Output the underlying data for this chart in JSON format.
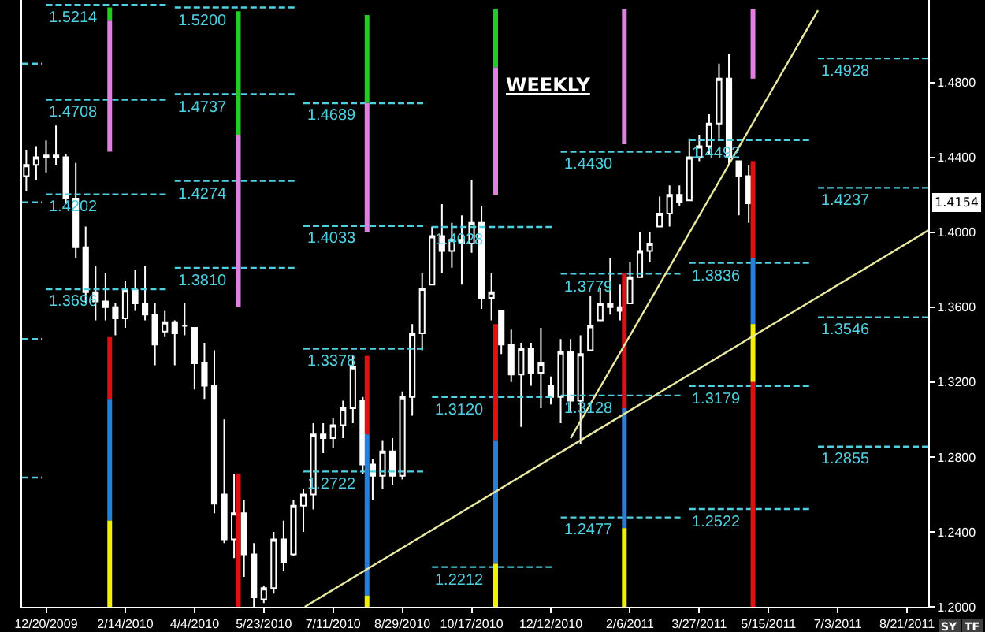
{
  "chart_data": {
    "type": "candlestick",
    "color": "#ffffff",
    "annotations": [
      "WEEKLY",
      "1.4154",
      "SY",
      "TF"
    ],
    "x": [
      "2009-12-06",
      "2009-12-13",
      "2009-12-20",
      "2009-12-27",
      "2010-01-03",
      "2010-01-10",
      "2010-01-17",
      "2010-01-24",
      "2010-01-31",
      "2010-02-07",
      "2010-02-14",
      "2010-02-21",
      "2010-02-28",
      "2010-03-07",
      "2010-03-14",
      "2010-03-21",
      "2010-03-28",
      "2010-04-04",
      "2010-04-11",
      "2010-04-18",
      "2010-04-25",
      "2010-05-02",
      "2010-05-09",
      "2010-05-16",
      "2010-05-23",
      "2010-05-30",
      "2010-06-06",
      "2010-06-13",
      "2010-06-20",
      "2010-06-27",
      "2010-07-04",
      "2010-07-11",
      "2010-07-18",
      "2010-07-25",
      "2010-08-01",
      "2010-08-08",
      "2010-08-15",
      "2010-08-22",
      "2010-08-29",
      "2010-09-05",
      "2010-09-12",
      "2010-09-19",
      "2010-09-26",
      "2010-10-03",
      "2010-10-10",
      "2010-10-17",
      "2010-10-24",
      "2010-10-31",
      "2010-11-07",
      "2010-11-14",
      "2010-11-21",
      "2010-11-28",
      "2010-12-05",
      "2010-12-12",
      "2010-12-19",
      "2010-12-26",
      "2011-01-02",
      "2011-01-09",
      "2011-01-16",
      "2011-01-23",
      "2011-01-30",
      "2011-02-06",
      "2011-02-13",
      "2011-02-20",
      "2011-02-27",
      "2011-03-06",
      "2011-03-13",
      "2011-03-20",
      "2011-03-27",
      "2011-04-03",
      "2011-04-10",
      "2011-04-17",
      "2011-04-24",
      "2011-05-01"
    ],
    "ohlc": [
      [
        1.43,
        1.444,
        1.422,
        1.436
      ],
      [
        1.436,
        1.446,
        1.428,
        1.44
      ],
      [
        1.44,
        1.449,
        1.432,
        1.441
      ],
      [
        1.441,
        1.457,
        1.436,
        1.44
      ],
      [
        1.44,
        1.442,
        1.415,
        1.418
      ],
      [
        1.418,
        1.437,
        1.386,
        1.392
      ],
      [
        1.392,
        1.403,
        1.362,
        1.368
      ],
      [
        1.368,
        1.382,
        1.353,
        1.363
      ],
      [
        1.363,
        1.378,
        1.353,
        1.36
      ],
      [
        1.36,
        1.362,
        1.345,
        1.354
      ],
      [
        1.354,
        1.374,
        1.349,
        1.369
      ],
      [
        1.369,
        1.38,
        1.358,
        1.362
      ],
      [
        1.362,
        1.382,
        1.353,
        1.356
      ],
      [
        1.356,
        1.362,
        1.329,
        1.34
      ],
      [
        1.347,
        1.358,
        1.344,
        1.352
      ],
      [
        1.352,
        1.353,
        1.329,
        1.346
      ],
      [
        1.35,
        1.362,
        1.345,
        1.35
      ],
      [
        1.349,
        1.349,
        1.316,
        1.33
      ],
      [
        1.33,
        1.341,
        1.311,
        1.318
      ],
      [
        1.318,
        1.337,
        1.25,
        1.255
      ],
      [
        1.26,
        1.3,
        1.234,
        1.236
      ],
      [
        1.236,
        1.271,
        1.226,
        1.25
      ],
      [
        1.25,
        1.257,
        1.216,
        1.228
      ],
      [
        1.228,
        1.234,
        1.2,
        1.205
      ],
      [
        1.204,
        1.211,
        1.202,
        1.21
      ],
      [
        1.21,
        1.24,
        1.207,
        1.236
      ],
      [
        1.236,
        1.246,
        1.219,
        1.224
      ],
      [
        1.228,
        1.257,
        1.227,
        1.254
      ],
      [
        1.254,
        1.263,
        1.24,
        1.26
      ],
      [
        1.26,
        1.298,
        1.252,
        1.292
      ],
      [
        1.292,
        1.298,
        1.282,
        1.29
      ],
      [
        1.29,
        1.301,
        1.285,
        1.297
      ],
      [
        1.297,
        1.31,
        1.29,
        1.306
      ],
      [
        1.306,
        1.334,
        1.298,
        1.328
      ],
      [
        1.31,
        1.312,
        1.271,
        1.276
      ],
      [
        1.276,
        1.279,
        1.257,
        1.27
      ],
      [
        1.27,
        1.289,
        1.263,
        1.283
      ],
      [
        1.283,
        1.29,
        1.265,
        1.27
      ],
      [
        1.27,
        1.315,
        1.268,
        1.312
      ],
      [
        1.312,
        1.351,
        1.302,
        1.346
      ],
      [
        1.346,
        1.378,
        1.337,
        1.37
      ],
      [
        1.372,
        1.403,
        1.372,
        1.398
      ],
      [
        1.398,
        1.415,
        1.378,
        1.39
      ],
      [
        1.39,
        1.405,
        1.381,
        1.396
      ],
      [
        1.396,
        1.409,
        1.372,
        1.394
      ],
      [
        1.394,
        1.428,
        1.389,
        1.405
      ],
      [
        1.405,
        1.414,
        1.359,
        1.365
      ],
      [
        1.365,
        1.378,
        1.353,
        1.368
      ],
      [
        1.358,
        1.358,
        1.335,
        1.34
      ],
      [
        1.34,
        1.348,
        1.32,
        1.324
      ],
      [
        1.324,
        1.341,
        1.296,
        1.338
      ],
      [
        1.338,
        1.341,
        1.318,
        1.325
      ],
      [
        1.325,
        1.349,
        1.306,
        1.33
      ],
      [
        1.318,
        1.323,
        1.308,
        1.312
      ],
      [
        1.312,
        1.343,
        1.298,
        1.336
      ],
      [
        1.336,
        1.343,
        1.304,
        1.31
      ],
      [
        1.31,
        1.345,
        1.287,
        1.335
      ],
      [
        1.337,
        1.366,
        1.337,
        1.35
      ],
      [
        1.353,
        1.37,
        1.353,
        1.362
      ],
      [
        1.362,
        1.386,
        1.356,
        1.36
      ],
      [
        1.36,
        1.372,
        1.353,
        1.358
      ],
      [
        1.362,
        1.384,
        1.362,
        1.376
      ],
      [
        1.376,
        1.4,
        1.376,
        1.39
      ],
      [
        1.39,
        1.4,
        1.384,
        1.394
      ],
      [
        1.403,
        1.419,
        1.403,
        1.41
      ],
      [
        1.41,
        1.425,
        1.403,
        1.42
      ],
      [
        1.42,
        1.425,
        1.414,
        1.416
      ],
      [
        1.417,
        1.45,
        1.417,
        1.44
      ],
      [
        1.44,
        1.452,
        1.438,
        1.446
      ],
      [
        1.446,
        1.463,
        1.442,
        1.458
      ],
      [
        1.458,
        1.49,
        1.45,
        1.482
      ],
      [
        1.482,
        1.495,
        1.436,
        1.44
      ],
      [
        1.438,
        1.438,
        1.409,
        1.43
      ],
      [
        1.43,
        1.436,
        1.405,
        1.4154
      ]
    ],
    "series": [
      {
        "type": "line",
        "x": [
          "2009-12-03",
          "2009-12-17"
        ],
        "values": [
          1.49,
          1.49
        ],
        "color": "#4fd0e0",
        "line_style": "dashed"
      },
      {
        "type": "line",
        "x": [
          "2009-12-03",
          "2009-12-17"
        ],
        "values": [
          1.416,
          1.416
        ],
        "color": "#4fd0e0",
        "line_style": "dashed"
      },
      {
        "type": "line",
        "x": [
          "2009-12-03",
          "2009-12-17"
        ],
        "values": [
          1.343,
          1.343
        ],
        "color": "#4fd0e0",
        "line_style": "dashed"
      },
      {
        "type": "line",
        "x": [
          "2009-12-03",
          "2009-12-17"
        ],
        "values": [
          1.269,
          1.269
        ],
        "color": "#4fd0e0",
        "line_style": "dashed"
      },
      {
        "type": "line",
        "x": [
          "2009-12-20",
          "2010-03-17"
        ],
        "values": [
          1.5214,
          1.5214
        ],
        "color": "#4fd0e0",
        "line_style": "dashed",
        "value_labels": [
          "1.5214",
          null
        ]
      },
      {
        "type": "line",
        "x": [
          "2009-12-20",
          "2010-03-17"
        ],
        "values": [
          1.4708,
          1.4708
        ],
        "color": "#4fd0e0",
        "line_style": "dashed",
        "value_labels": [
          "1.4708",
          null
        ]
      },
      {
        "type": "line",
        "x": [
          "2009-12-20",
          "2010-03-17"
        ],
        "values": [
          1.4202,
          1.4202
        ],
        "color": "#4fd0e0",
        "line_style": "dashed",
        "value_labels": [
          "1.4202",
          null
        ]
      },
      {
        "type": "line",
        "x": [
          "2009-12-20",
          "2010-03-17"
        ],
        "values": [
          1.3696,
          1.3696
        ],
        "color": "#4fd0e0",
        "line_style": "dashed",
        "value_labels": [
          "1.3696",
          null
        ]
      },
      {
        "type": "line",
        "x": [
          "2010-03-21",
          "2010-06-16"
        ],
        "values": [
          1.52,
          1.52
        ],
        "color": "#4fd0e0",
        "line_style": "dashed",
        "value_labels": [
          "1.5200",
          null
        ]
      },
      {
        "type": "line",
        "x": [
          "2010-03-21",
          "2010-06-16"
        ],
        "values": [
          1.4737,
          1.4737
        ],
        "color": "#4fd0e0",
        "line_style": "dashed",
        "value_labels": [
          "1.4737",
          null
        ]
      },
      {
        "type": "line",
        "x": [
          "2010-03-21",
          "2010-06-16"
        ],
        "values": [
          1.4274,
          1.4274
        ],
        "color": "#4fd0e0",
        "line_style": "dashed",
        "value_labels": [
          "1.4274",
          null
        ]
      },
      {
        "type": "line",
        "x": [
          "2010-03-21",
          "2010-06-16"
        ],
        "values": [
          1.381,
          1.381
        ],
        "color": "#4fd0e0",
        "line_style": "dashed",
        "value_labels": [
          "1.3810",
          null
        ]
      },
      {
        "type": "line",
        "x": [
          "2010-06-20",
          "2010-09-15"
        ],
        "values": [
          1.4689,
          1.4689
        ],
        "color": "#4fd0e0",
        "line_style": "dashed",
        "value_labels": [
          "1.4689",
          null
        ]
      },
      {
        "type": "line",
        "x": [
          "2010-06-20",
          "2010-09-15"
        ],
        "values": [
          1.4033,
          1.4033
        ],
        "color": "#4fd0e0",
        "line_style": "dashed",
        "value_labels": [
          "1.4033",
          null
        ]
      },
      {
        "type": "line",
        "x": [
          "2010-06-20",
          "2010-09-15"
        ],
        "values": [
          1.3378,
          1.3378
        ],
        "color": "#4fd0e0",
        "line_style": "dashed",
        "value_labels": [
          "1.3378",
          null
        ]
      },
      {
        "type": "line",
        "x": [
          "2010-06-20",
          "2010-09-15"
        ],
        "values": [
          1.2722,
          1.2722
        ],
        "color": "#4fd0e0",
        "line_style": "dashed",
        "value_labels": [
          "1.2722",
          null
        ]
      },
      {
        "type": "line",
        "x": [
          "2010-09-19",
          "2010-12-15"
        ],
        "values": [
          1.4028,
          1.4028
        ],
        "color": "#4fd0e0",
        "line_style": "dashed",
        "value_labels": [
          "1.4028",
          null
        ]
      },
      {
        "type": "line",
        "x": [
          "2010-09-19",
          "2010-12-15"
        ],
        "values": [
          1.312,
          1.312
        ],
        "color": "#4fd0e0",
        "line_style": "dashed",
        "value_labels": [
          "1.3120",
          null
        ]
      },
      {
        "type": "line",
        "x": [
          "2010-09-19",
          "2010-12-15"
        ],
        "values": [
          1.2212,
          1.2212
        ],
        "color": "#4fd0e0",
        "line_style": "dashed",
        "value_labels": [
          "1.2212",
          null
        ]
      },
      {
        "type": "line",
        "x": [
          "2010-12-19",
          "2011-03-16"
        ],
        "values": [
          1.443,
          1.443
        ],
        "color": "#4fd0e0",
        "line_style": "dashed",
        "value_labels": [
          "1.4430",
          null
        ]
      },
      {
        "type": "line",
        "x": [
          "2010-12-19",
          "2011-03-16"
        ],
        "values": [
          1.3779,
          1.3779
        ],
        "color": "#4fd0e0",
        "line_style": "dashed",
        "value_labels": [
          "1.3779",
          null
        ]
      },
      {
        "type": "line",
        "x": [
          "2010-12-19",
          "2011-03-16"
        ],
        "values": [
          1.3128,
          1.3128
        ],
        "color": "#4fd0e0",
        "line_style": "dashed",
        "value_labels": [
          "1.3128",
          null
        ]
      },
      {
        "type": "line",
        "x": [
          "2010-12-19",
          "2011-03-16"
        ],
        "values": [
          1.2477,
          1.2477
        ],
        "color": "#4fd0e0",
        "line_style": "dashed",
        "value_labels": [
          "1.2477",
          null
        ]
      },
      {
        "type": "line",
        "x": [
          "2011-03-20",
          "2011-06-15"
        ],
        "values": [
          1.4492,
          1.4492
        ],
        "color": "#4fd0e0",
        "line_style": "dashed",
        "value_labels": [
          "1.4492",
          null
        ]
      },
      {
        "type": "line",
        "x": [
          "2011-03-20",
          "2011-06-15"
        ],
        "values": [
          1.3836,
          1.3836
        ],
        "color": "#4fd0e0",
        "line_style": "dashed",
        "value_labels": [
          "1.3836",
          null
        ]
      },
      {
        "type": "line",
        "x": [
          "2011-03-20",
          "2011-06-15"
        ],
        "values": [
          1.3179,
          1.3179
        ],
        "color": "#4fd0e0",
        "line_style": "dashed",
        "value_labels": [
          "1.3179",
          null
        ]
      },
      {
        "type": "line",
        "x": [
          "2011-03-20",
          "2011-06-15"
        ],
        "values": [
          1.2522,
          1.2522
        ],
        "color": "#4fd0e0",
        "line_style": "dashed",
        "value_labels": [
          "1.2522",
          null
        ]
      },
      {
        "type": "line",
        "x": [
          "2011-06-19",
          "2011-09-05"
        ],
        "values": [
          1.4928,
          1.4928
        ],
        "color": "#4fd0e0",
        "line_style": "dashed",
        "value_labels": [
          "1.4928",
          null
        ]
      },
      {
        "type": "line",
        "x": [
          "2011-06-19",
          "2011-09-05"
        ],
        "values": [
          1.4237,
          1.4237
        ],
        "color": "#4fd0e0",
        "line_style": "dashed",
        "value_labels": [
          "1.4237",
          null
        ]
      },
      {
        "type": "line",
        "x": [
          "2011-06-19",
          "2011-09-05"
        ],
        "values": [
          1.3546,
          1.3546
        ],
        "color": "#4fd0e0",
        "line_style": "dashed",
        "value_labels": [
          "1.3546",
          null
        ]
      },
      {
        "type": "line",
        "x": [
          "2011-06-19",
          "2011-09-05"
        ],
        "values": [
          1.2855,
          1.2855
        ],
        "color": "#4fd0e0",
        "line_style": "dashed",
        "value_labels": [
          "1.2855",
          null
        ]
      },
      {
        "type": "line",
        "x": [
          "2010-02-03",
          "2010-02-03"
        ],
        "values": [
          1.52,
          1.513
        ],
        "color": "#22cc22",
        "line_style": "solid"
      },
      {
        "type": "line",
        "x": [
          "2010-02-03",
          "2010-02-03"
        ],
        "values": [
          1.513,
          1.443
        ],
        "color": "#e080e0",
        "line_style": "solid"
      },
      {
        "type": "line",
        "x": [
          "2010-02-03",
          "2010-02-03"
        ],
        "values": [
          1.344,
          1.311
        ],
        "color": "#dd1111",
        "line_style": "solid"
      },
      {
        "type": "line",
        "x": [
          "2010-02-03",
          "2010-02-03"
        ],
        "values": [
          1.311,
          1.246
        ],
        "color": "#2a7fd4",
        "line_style": "solid"
      },
      {
        "type": "line",
        "x": [
          "2010-02-03",
          "2010-02-03"
        ],
        "values": [
          1.246,
          1.2
        ],
        "color": "#f0f000",
        "line_style": "solid"
      },
      {
        "type": "line",
        "x": [
          "2010-05-05",
          "2010-05-05"
        ],
        "values": [
          1.518,
          1.452
        ],
        "color": "#22cc22",
        "line_style": "solid"
      },
      {
        "type": "line",
        "x": [
          "2010-05-05",
          "2010-05-05"
        ],
        "values": [
          1.452,
          1.36
        ],
        "color": "#e080e0",
        "line_style": "solid"
      },
      {
        "type": "line",
        "x": [
          "2010-05-05",
          "2010-05-05"
        ],
        "values": [
          1.271,
          1.2
        ],
        "color": "#dd1111",
        "line_style": "solid"
      },
      {
        "type": "line",
        "x": [
          "2010-08-04",
          "2010-08-04"
        ],
        "values": [
          1.516,
          1.469
        ],
        "color": "#22cc22",
        "line_style": "solid"
      },
      {
        "type": "line",
        "x": [
          "2010-08-04",
          "2010-08-04"
        ],
        "values": [
          1.469,
          1.4
        ],
        "color": "#e080e0",
        "line_style": "solid"
      },
      {
        "type": "line",
        "x": [
          "2010-08-04",
          "2010-08-04"
        ],
        "values": [
          1.334,
          1.292
        ],
        "color": "#dd1111",
        "line_style": "solid"
      },
      {
        "type": "line",
        "x": [
          "2010-08-04",
          "2010-08-04"
        ],
        "values": [
          1.292,
          1.206
        ],
        "color": "#2a7fd4",
        "line_style": "solid"
      },
      {
        "type": "line",
        "x": [
          "2010-08-04",
          "2010-08-04"
        ],
        "values": [
          1.206,
          1.2
        ],
        "color": "#f0f000",
        "line_style": "solid"
      },
      {
        "type": "line",
        "x": [
          "2010-11-03",
          "2010-11-03"
        ],
        "values": [
          1.519,
          1.488
        ],
        "color": "#22cc22",
        "line_style": "solid"
      },
      {
        "type": "line",
        "x": [
          "2010-11-03",
          "2010-11-03"
        ],
        "values": [
          1.488,
          1.42
        ],
        "color": "#e080e0",
        "line_style": "solid"
      },
      {
        "type": "line",
        "x": [
          "2010-11-03",
          "2010-11-03"
        ],
        "values": [
          1.351,
          1.289
        ],
        "color": "#dd1111",
        "line_style": "solid"
      },
      {
        "type": "line",
        "x": [
          "2010-11-03",
          "2010-11-03"
        ],
        "values": [
          1.289,
          1.223
        ],
        "color": "#2a7fd4",
        "line_style": "solid"
      },
      {
        "type": "line",
        "x": [
          "2010-11-03",
          "2010-11-03"
        ],
        "values": [
          1.223,
          1.2
        ],
        "color": "#f0f000",
        "line_style": "solid"
      },
      {
        "type": "line",
        "x": [
          "2011-02-02",
          "2011-02-02"
        ],
        "values": [
          1.519,
          1.447
        ],
        "color": "#e080e0",
        "line_style": "solid"
      },
      {
        "type": "line",
        "x": [
          "2011-02-02",
          "2011-02-02"
        ],
        "values": [
          1.378,
          1.306
        ],
        "color": "#dd1111",
        "line_style": "solid"
      },
      {
        "type": "line",
        "x": [
          "2011-02-02",
          "2011-02-02"
        ],
        "values": [
          1.306,
          1.242
        ],
        "color": "#2a7fd4",
        "line_style": "solid"
      },
      {
        "type": "line",
        "x": [
          "2011-02-02",
          "2011-02-02"
        ],
        "values": [
          1.242,
          1.2
        ],
        "color": "#f0f000",
        "line_style": "solid"
      },
      {
        "type": "line",
        "x": [
          "2011-05-04",
          "2011-05-04"
        ],
        "values": [
          1.519,
          1.482
        ],
        "color": "#e080e0",
        "line_style": "solid"
      },
      {
        "type": "line",
        "x": [
          "2011-05-04",
          "2011-05-04"
        ],
        "values": [
          1.438,
          1.386
        ],
        "color": "#dd1111",
        "line_style": "solid"
      },
      {
        "type": "line",
        "x": [
          "2011-05-04",
          "2011-05-04"
        ],
        "values": [
          1.386,
          1.351
        ],
        "color": "#2a7fd4",
        "line_style": "solid"
      },
      {
        "type": "line",
        "x": [
          "2011-05-04",
          "2011-05-04"
        ],
        "values": [
          1.351,
          1.32
        ],
        "color": "#f0f000",
        "line_style": "solid"
      },
      {
        "type": "line",
        "x": [
          "2011-05-04",
          "2011-05-04"
        ],
        "values": [
          1.32,
          1.2
        ],
        "color": "#dd1111",
        "line_style": "solid"
      },
      {
        "type": "line",
        "x": [
          "2010-06-21",
          "2011-09-05"
        ],
        "values": [
          1.2,
          1.401
        ],
        "color": "#e8e8a0",
        "line_style": "solid"
      },
      {
        "type": "line",
        "x": [
          "2010-12-26",
          "2011-06-19"
        ],
        "values": [
          1.29,
          1.5185
        ],
        "color": "#e8e8a0",
        "line_style": "solid"
      }
    ],
    "xlim": [
      "2009-12-03",
      "2011-09-05"
    ],
    "xticks": [
      {
        "value": "2009-12-20",
        "label": "12/20/2009"
      },
      {
        "value": "2010-02-14",
        "label": "2/14/2010"
      },
      {
        "value": "2010-04-04",
        "label": "4/4/2010"
      },
      {
        "value": "2010-05-23",
        "label": "5/23/2010"
      },
      {
        "value": "2010-07-11",
        "label": "7/11/2010"
      },
      {
        "value": "2010-08-29",
        "label": "8/29/2010"
      },
      {
        "value": "2010-10-17",
        "label": "10/17/2010"
      },
      {
        "value": "2010-12-12",
        "label": "12/12/2010"
      },
      {
        "value": "2011-02-06",
        "label": "2/6/2011"
      },
      {
        "value": "2011-03-27",
        "label": "3/27/2011"
      },
      {
        "value": "2011-05-15",
        "label": "5/15/2011"
      },
      {
        "value": "2011-07-03",
        "label": "7/3/2011"
      },
      {
        "value": "2011-08-21",
        "label": "8/21/2011"
      }
    ],
    "ylim": [
      1.2,
      1.524
    ],
    "yticks": [
      {
        "value": 1.2,
        "label": "1.2000"
      },
      {
        "value": 1.24,
        "label": "1.2400"
      },
      {
        "value": 1.28,
        "label": "1.2800"
      },
      {
        "value": 1.32,
        "label": "1.3200"
      },
      {
        "value": 1.36,
        "label": "1.3600"
      },
      {
        "value": 1.4,
        "label": "1.4000"
      },
      {
        "value": 1.44,
        "label": "1.4400"
      },
      {
        "value": 1.48,
        "label": "1.4800"
      }
    ],
    "grid": false
  }
}
